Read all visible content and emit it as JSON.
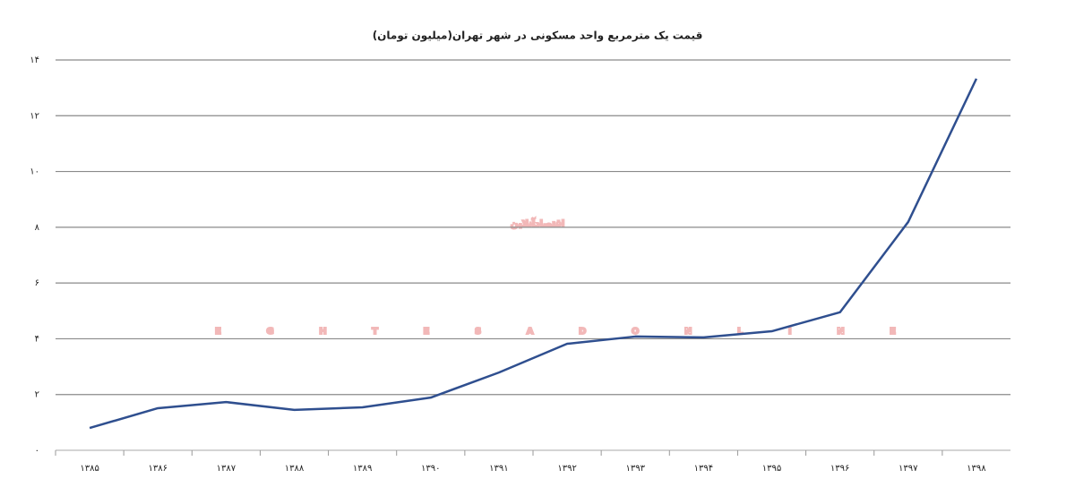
{
  "chart_data": {
    "type": "line",
    "title": "قیمت یک مترمربع واحد مسکونی در شهر تهران(میلیون تومان)",
    "watermark": [
      "اقتصادآنلاین",
      "EGHTESADONLINE"
    ],
    "categories": [
      "۱۳۸۵",
      "۱۳۸۶",
      "۱۳۸۷",
      "۱۳۸۸",
      "۱۳۸۹",
      "۱۳۹۰",
      "۱۳۹۱",
      "۱۳۹۲",
      "۱۳۹۳",
      "۱۳۹۴",
      "۱۳۹۵",
      "۱۳۹۶",
      "۱۳۹۷",
      "۱۳۹۸"
    ],
    "values": [
      0.8,
      1.51,
      1.73,
      1.45,
      1.54,
      1.89,
      2.79,
      3.82,
      4.08,
      4.05,
      4.27,
      4.95,
      8.19,
      13.33
    ],
    "color": "#2f4f8f",
    "ylim": [
      0,
      14
    ],
    "yticks": [
      {
        "value": 0,
        "label": "۰"
      },
      {
        "value": 2,
        "label": "۲"
      },
      {
        "value": 4,
        "label": "۴"
      },
      {
        "value": 6,
        "label": "۶"
      },
      {
        "value": 8,
        "label": "۸"
      },
      {
        "value": 10,
        "label": "۱۰"
      },
      {
        "value": 12,
        "label": "۱۲"
      },
      {
        "value": 14,
        "label": "۱۴"
      }
    ],
    "grid": true
  }
}
